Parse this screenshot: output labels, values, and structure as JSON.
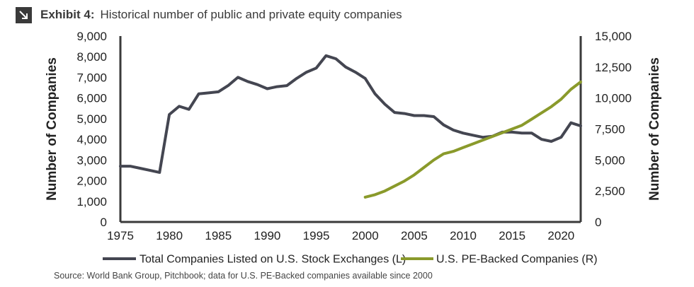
{
  "header": {
    "label": "Exhibit 4:",
    "title": "Historical number of public and private equity companies"
  },
  "source": "Source: World Bank Group, Pitchbook; data for U.S. PE-Backed companies available since 2000",
  "colors": {
    "public": "#444651",
    "pe": "#8a9a2b",
    "axis": "#3a3a3a"
  },
  "chart_data": {
    "type": "line",
    "xlabel": "",
    "xlim": [
      1975,
      2022
    ],
    "x_ticks": [
      "1975",
      "1980",
      "1985",
      "1990",
      "1995",
      "2000",
      "2005",
      "2010",
      "2015",
      "2020"
    ],
    "y_left": {
      "label": "Number of Companies",
      "lim": [
        0,
        9000
      ],
      "ticks": [
        "0",
        "1,000",
        "2,000",
        "3,000",
        "4,000",
        "5,000",
        "6,000",
        "7,000",
        "8,000",
        "9,000"
      ]
    },
    "y_right": {
      "label": "Number of Companies",
      "lim": [
        0,
        15000
      ],
      "ticks": [
        "0",
        "2,500",
        "5,000",
        "7,500",
        "10,000",
        "12,500",
        "15,000"
      ]
    },
    "series": [
      {
        "name": "Total Companies Listed on U.S. Stock Exchanges (L)",
        "axis": "left",
        "x": [
          1975,
          1976,
          1977,
          1978,
          1979,
          1980,
          1981,
          1982,
          1983,
          1984,
          1985,
          1986,
          1987,
          1988,
          1989,
          1990,
          1991,
          1992,
          1993,
          1994,
          1995,
          1996,
          1997,
          1998,
          1999,
          2000,
          2001,
          2002,
          2003,
          2004,
          2005,
          2006,
          2007,
          2008,
          2009,
          2010,
          2011,
          2012,
          2013,
          2014,
          2015,
          2016,
          2017,
          2018,
          2019,
          2020,
          2021,
          2022
        ],
        "values": [
          2700,
          2700,
          2600,
          2500,
          2400,
          5200,
          5600,
          5450,
          6200,
          6250,
          6300,
          6600,
          7000,
          6800,
          6650,
          6450,
          6550,
          6600,
          6950,
          7250,
          7450,
          8050,
          7900,
          7500,
          7250,
          6950,
          6200,
          5700,
          5300,
          5250,
          5150,
          5150,
          5100,
          4700,
          4450,
          4300,
          4200,
          4100,
          4150,
          4350,
          4350,
          4300,
          4300,
          4000,
          3900,
          4100,
          4800,
          4650
        ]
      },
      {
        "name": "U.S. PE-Backed Companies (R)",
        "axis": "right",
        "x": [
          2000,
          2001,
          2002,
          2003,
          2004,
          2005,
          2006,
          2007,
          2008,
          2009,
          2010,
          2011,
          2012,
          2013,
          2014,
          2015,
          2016,
          2017,
          2018,
          2019,
          2020,
          2021,
          2022
        ],
        "values": [
          2000,
          2200,
          2500,
          2900,
          3300,
          3800,
          4400,
          5000,
          5500,
          5700,
          6000,
          6300,
          6600,
          6900,
          7200,
          7500,
          7800,
          8300,
          8800,
          9300,
          9900,
          10700,
          11300
        ]
      }
    ],
    "legend_position": "bottom"
  }
}
